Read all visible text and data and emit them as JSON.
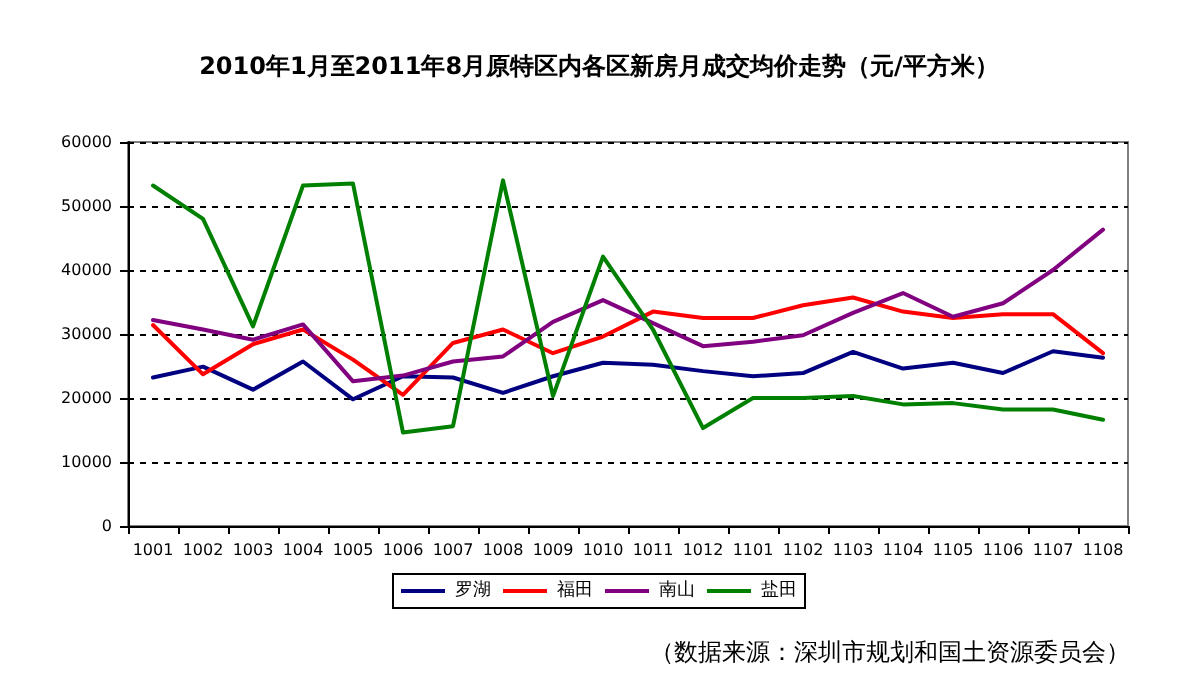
{
  "chart_data": {
    "type": "line",
    "title": "2010年1月至2011年8月原特区内各区新房月成交均价走势（元/平方米）",
    "categories": [
      "1001",
      "1002",
      "1003",
      "1004",
      "1005",
      "1006",
      "1007",
      "1008",
      "1009",
      "1010",
      "1011",
      "1012",
      "1101",
      "1102",
      "1103",
      "1104",
      "1105",
      "1106",
      "1107",
      "1108"
    ],
    "series": [
      {
        "name": "罗湖",
        "color": "#000080",
        "values": [
          23200,
          24900,
          21300,
          25700,
          19800,
          23400,
          23200,
          20800,
          23400,
          25500,
          25200,
          24200,
          23400,
          23900,
          27200,
          24600,
          25500,
          23900,
          27300,
          26300
        ]
      },
      {
        "name": "福田",
        "color": "#ff0000",
        "values": [
          31400,
          23700,
          28400,
          30700,
          26000,
          20500,
          28600,
          30700,
          27000,
          29600,
          33500,
          32500,
          32500,
          34500,
          35700,
          33500,
          32500,
          33100,
          33100,
          27000
        ]
      },
      {
        "name": "南山",
        "color": "#800080",
        "values": [
          32200,
          30700,
          29100,
          31500,
          22600,
          23500,
          25700,
          26500,
          31900,
          35300,
          31700,
          28100,
          28800,
          29800,
          33300,
          36400,
          32700,
          34800,
          40000,
          46300
        ]
      },
      {
        "name": "盐田",
        "color": "#008000",
        "values": [
          53200,
          48000,
          31200,
          53200,
          53500,
          14600,
          15600,
          54000,
          20300,
          42100,
          30700,
          15300,
          20000,
          20000,
          20300,
          19000,
          19200,
          18200,
          18200,
          16600
        ]
      }
    ],
    "ylim": [
      0,
      60000
    ],
    "yticks": [
      0,
      10000,
      20000,
      30000,
      40000,
      50000,
      60000
    ],
    "grid": "y",
    "legend": "bottom",
    "marker": "none",
    "line_style": "solid",
    "annotations": [
      "（数据来源：深圳市规划和国土资源委员会）"
    ]
  }
}
